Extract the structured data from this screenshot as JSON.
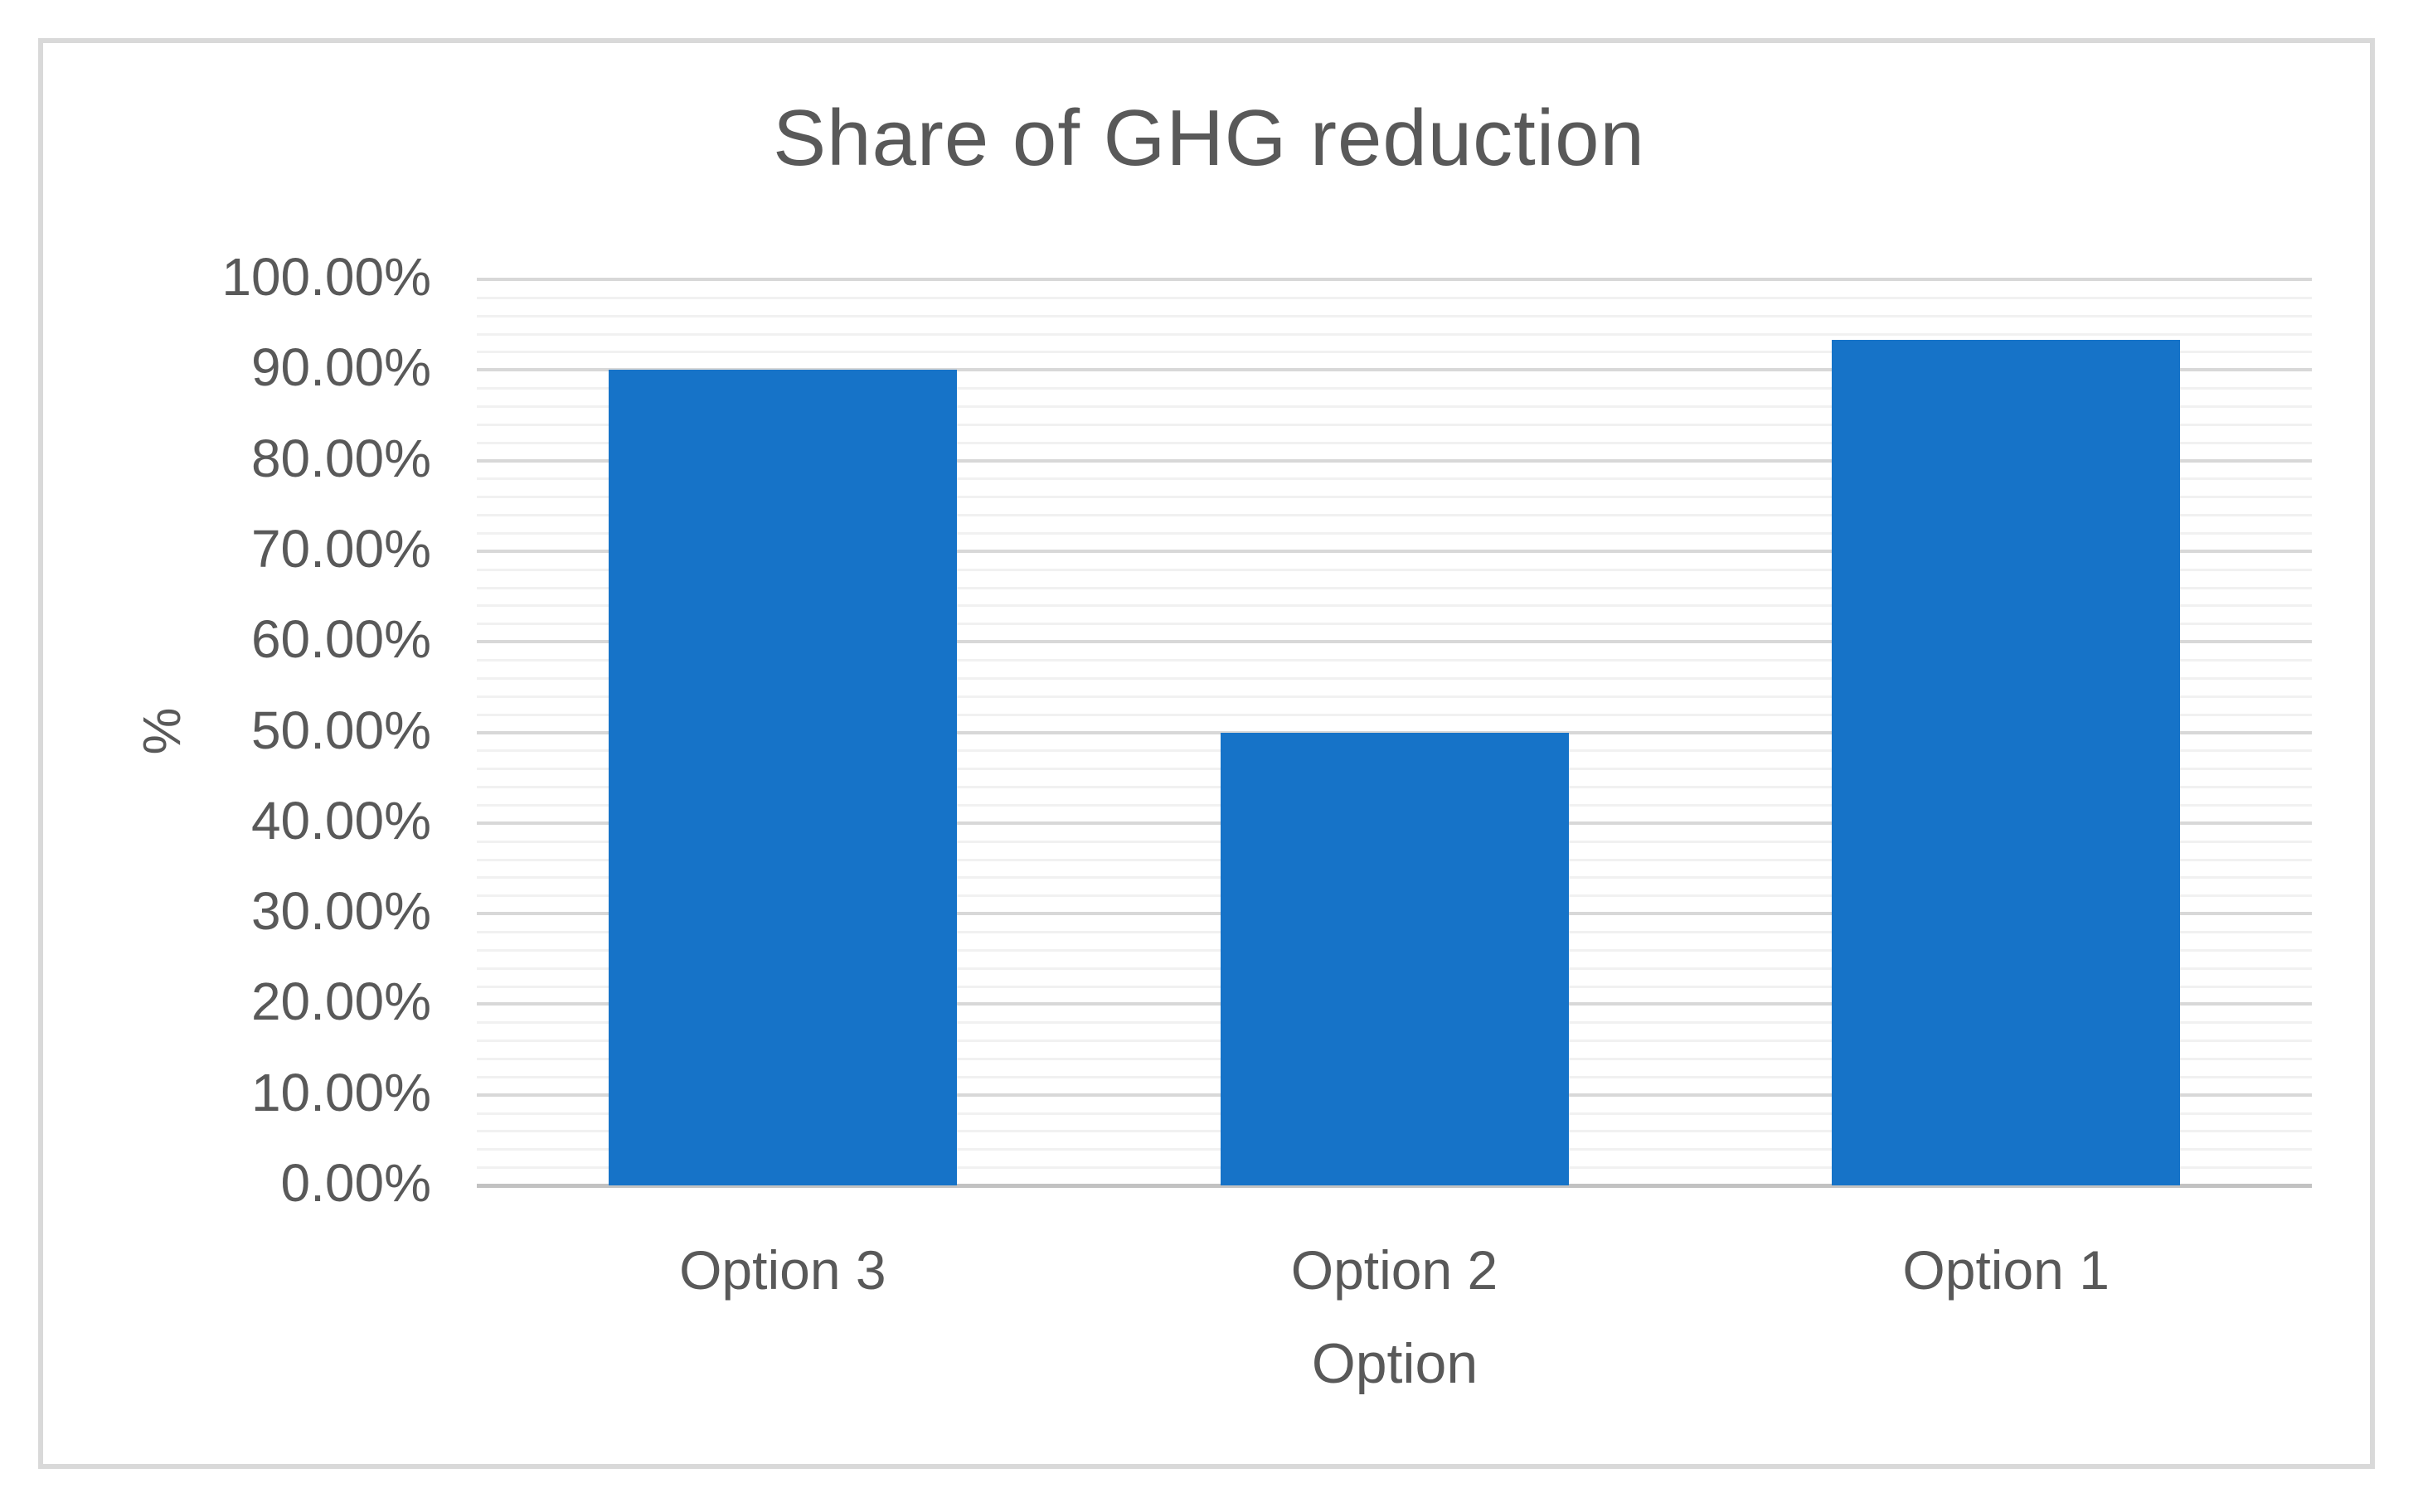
{
  "chart_data": {
    "type": "bar",
    "title": "Share of GHG reduction",
    "xlabel": "Option",
    "ylabel": "%",
    "categories": [
      "Option 3",
      "Option 2",
      "Option 1"
    ],
    "values": [
      90.0,
      50.0,
      93.3
    ],
    "value_unit": "percent",
    "ylim": [
      0,
      100
    ],
    "y_major_step": 10,
    "y_minor_step": 2,
    "y_tick_labels": [
      "0.00%",
      "10.00%",
      "20.00%",
      "30.00%",
      "40.00%",
      "50.00%",
      "60.00%",
      "70.00%",
      "80.00%",
      "90.00%",
      "100.00%"
    ],
    "grid": "major and minor horizontal gridlines",
    "legend_position": "none",
    "bar_color": "#1673C8"
  },
  "colors": {
    "bar": "#1673C8",
    "text": "#595959",
    "gridline_major": "#d8d8d8",
    "gridline_minor": "#f1f1f1",
    "axis_line": "#c2c2c2",
    "frame_border": "#d9d9d9",
    "background": "#ffffff"
  }
}
